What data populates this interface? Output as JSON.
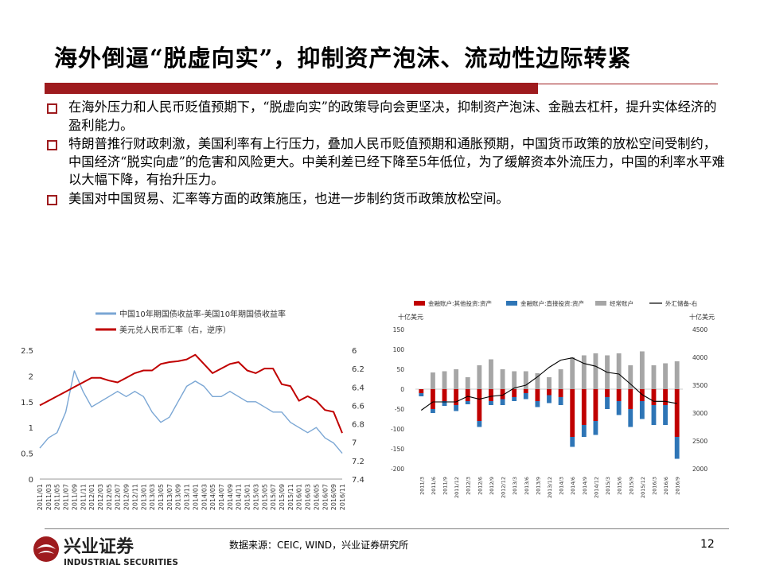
{
  "header": {
    "title": "海外倒逼“脱虚向实”，抑制资产泡沫、流动性边际转紧"
  },
  "bullets": [
    "在海外压力和人民币贬值预期下，“脱虚向实”的政策导向会更坚决，抑制资产泡沫、金融去杠杆，提升实体经济的盈利能力。",
    "特朗普推行财政刺激，美国利率有上行压力，叠加人民币贬值预期和通胀预期，中国货币政策的放松空间受制约，中国经济“脱实向虚”的危害和风险更大。中美利差已经下降至5年低位，为了缓解资本外流压力，中国的利率水平难以大幅下降，有抬升压力。",
    "美国对中国贸易、汇率等方面的政策施压，也进一步制约货币政策放松空间。"
  ],
  "footer": {
    "source": "数据来源：CEIC, WIND，兴业证券研究所",
    "page": "12"
  },
  "logo": {
    "cn": "兴业证券",
    "en": "INDUSTRIAL SECURITIES"
  },
  "colors": {
    "accent": "#9e1b1e",
    "blue": "#7aa6d4",
    "red": "#c00000",
    "darkblue": "#2e75b6",
    "grey": "#a6a6a6"
  },
  "chart_data": [
    {
      "type": "line",
      "legend": [
        "中国10年期国债收益率-美国10年期国债收益率",
        "美元兑人民币汇率（右，逆序）"
      ],
      "x": [
        "2011/01",
        "2011/03",
        "2011/05",
        "2011/07",
        "2011/09",
        "2011/11",
        "2012/01",
        "2012/03",
        "2012/05",
        "2012/07",
        "2012/09",
        "2012/11",
        "2013/01",
        "2013/03",
        "2013/05",
        "2013/07",
        "2013/09",
        "2013/11",
        "2014/01",
        "2014/03",
        "2014/05",
        "2014/07",
        "2014/09",
        "2014/11",
        "2015/01",
        "2015/03",
        "2015/05",
        "2015/07",
        "2015/09",
        "2015/11",
        "2016/01",
        "2016/03",
        "2016/05",
        "2016/07",
        "2016/09",
        "2016/11"
      ],
      "y_left_ticks": [
        "0",
        "0.5",
        "1",
        "1.5",
        "2",
        "2.5"
      ],
      "y_right_ticks": [
        "6",
        "6.2",
        "6.4",
        "6.6",
        "6.8",
        "7",
        "7.2",
        "7.4"
      ],
      "ylim_left": [
        0,
        2.5
      ],
      "ylim_right": [
        6,
        7.4
      ],
      "series": [
        {
          "name": "中国10年期国债收益率-美国10年期国债收益率",
          "axis": "left",
          "values": [
            0.6,
            0.8,
            0.9,
            1.3,
            2.1,
            1.7,
            1.4,
            1.5,
            1.6,
            1.7,
            1.6,
            1.7,
            1.6,
            1.3,
            1.1,
            1.2,
            1.5,
            1.8,
            1.9,
            1.8,
            1.6,
            1.6,
            1.7,
            1.6,
            1.5,
            1.5,
            1.4,
            1.3,
            1.3,
            1.1,
            1.0,
            0.9,
            1.0,
            0.8,
            0.7,
            0.5
          ]
        },
        {
          "name": "美元兑人民币汇率（右，逆序）",
          "axis": "right",
          "values": [
            6.6,
            6.55,
            6.5,
            6.45,
            6.4,
            6.35,
            6.3,
            6.3,
            6.33,
            6.35,
            6.3,
            6.25,
            6.22,
            6.22,
            6.15,
            6.13,
            6.12,
            6.1,
            6.05,
            6.15,
            6.25,
            6.2,
            6.15,
            6.13,
            6.22,
            6.25,
            6.2,
            6.2,
            6.37,
            6.39,
            6.55,
            6.5,
            6.55,
            6.65,
            6.67,
            6.9
          ]
        }
      ]
    },
    {
      "type": "bar",
      "legend": [
        "金融账户:其他投资:资产",
        "金融账户:直接投资:资产",
        "经常账户",
        "外汇储备-右"
      ],
      "unit_left": "十亿美元",
      "unit_right": "十亿美元",
      "y_left_ticks": [
        "150",
        "100",
        "50",
        "0",
        "-50",
        "-100",
        "-150",
        "-200"
      ],
      "y_right_ticks": [
        "4500",
        "4000",
        "3500",
        "3000",
        "2500",
        "2000"
      ],
      "ylim_left": [
        -200,
        150
      ],
      "ylim_right": [
        2000,
        4500
      ],
      "categories": [
        "2011/3",
        "2011/6",
        "2011/9",
        "2011/12",
        "2012/3",
        "2012/6",
        "2012/9",
        "2012/12",
        "2013/3",
        "2013/6",
        "2013/9",
        "2013/12",
        "2014/3",
        "2014/6",
        "2014/9",
        "2014/12",
        "2015/3",
        "2015/6",
        "2015/9",
        "2015/12",
        "2016/3",
        "2016/6",
        "2016/9"
      ],
      "series": [
        {
          "name": "金融账户:其他投资:资产",
          "values": [
            -10,
            -50,
            -30,
            -40,
            -30,
            -80,
            -30,
            -25,
            -20,
            -10,
            -30,
            -15,
            -20,
            -120,
            -90,
            -80,
            -20,
            -30,
            -50,
            -30,
            -40,
            -40,
            -120
          ]
        },
        {
          "name": "金融账户:直接投资:资产",
          "values": [
            -8,
            -10,
            -12,
            -15,
            -8,
            -15,
            -10,
            -15,
            -10,
            -15,
            -15,
            -20,
            -20,
            -25,
            -30,
            -35,
            -30,
            -35,
            -45,
            -45,
            -50,
            -50,
            -55
          ]
        },
        {
          "name": "经常账户",
          "values": [
            0,
            42,
            45,
            50,
            30,
            60,
            75,
            50,
            45,
            45,
            40,
            30,
            50,
            80,
            85,
            90,
            85,
            90,
            60,
            95,
            60,
            65,
            70
          ]
        },
        {
          "name": "外汇储备-右",
          "values": [
            3050,
            3200,
            3200,
            3200,
            3300,
            3250,
            3300,
            3320,
            3450,
            3500,
            3650,
            3820,
            3950,
            3990,
            3890,
            3840,
            3730,
            3700,
            3520,
            3330,
            3210,
            3210,
            3170
          ]
        }
      ]
    }
  ]
}
